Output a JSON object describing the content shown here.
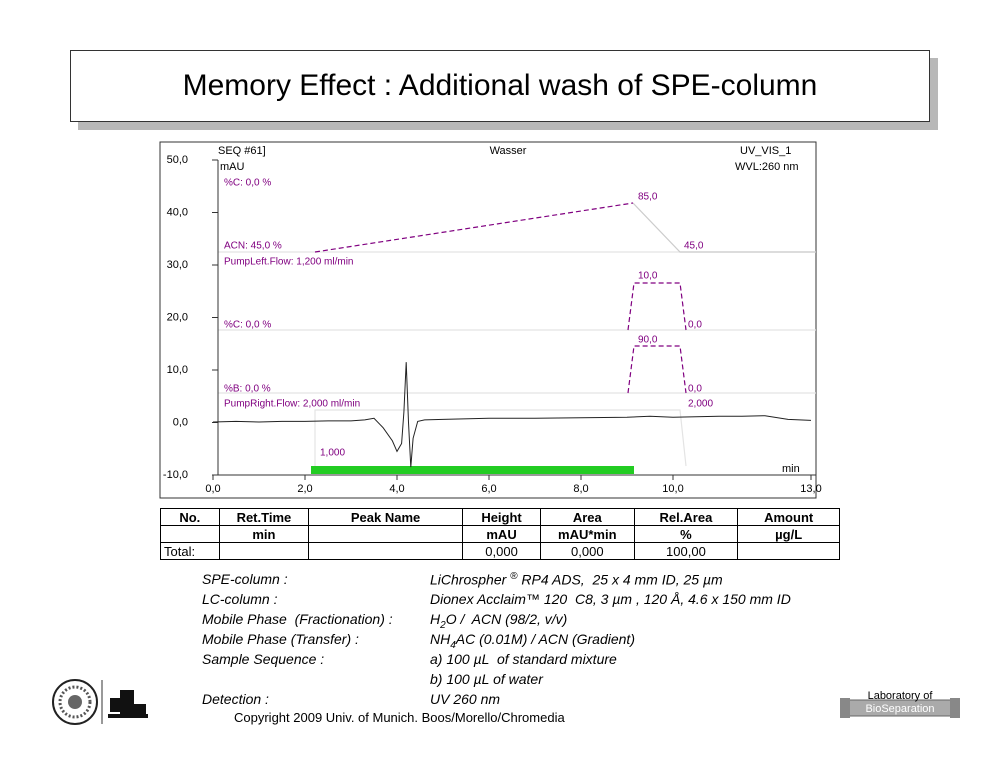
{
  "header": {
    "title": "Memory Effect :  Additional wash of SPE-column"
  },
  "chart_data": {
    "type": "line",
    "header_texts": [
      "SEQ #61]",
      "Wasser",
      "UV_VIS_1",
      "mAU",
      "WVL:260 nm"
    ],
    "x_label": "min",
    "x": [
      0,
      0.5,
      1,
      1.5,
      2,
      2.5,
      3,
      3.3,
      3.5,
      3.7,
      3.9,
      4.0,
      4.1,
      4.15,
      4.2,
      4.25,
      4.3,
      4.35,
      4.45,
      4.6,
      5,
      6,
      7,
      8,
      9,
      9.5,
      10,
      10.5,
      11,
      11.5,
      12,
      12.5,
      13
    ],
    "series": [
      {
        "color": "#222222",
        "values": [
          0.1,
          0.2,
          0.1,
          0.2,
          0.2,
          0.3,
          0.3,
          0.5,
          0.8,
          -1,
          -3.5,
          -5.5,
          -4,
          2,
          11.5,
          0,
          -8.5,
          -3,
          0.2,
          0.5,
          0.6,
          0.8,
          0.8,
          0.9,
          1,
          1.2,
          1,
          1.1,
          1.2,
          1.2,
          1.3,
          0.6,
          0.4
        ]
      }
    ],
    "xlim": [
      0,
      13
    ],
    "ylim": [
      -10,
      50
    ],
    "xticks": [
      {
        "value": 0,
        "label": "0,0"
      },
      {
        "value": 2,
        "label": "2,0"
      },
      {
        "value": 4,
        "label": "4,0"
      },
      {
        "value": 6,
        "label": "6,0"
      },
      {
        "value": 8,
        "label": "8,0"
      },
      {
        "value": 10,
        "label": "10,0"
      },
      {
        "value": 13,
        "label": "13,0"
      }
    ],
    "yticks": [
      {
        "value": -10,
        "label": "-10,0"
      },
      {
        "value": 0,
        "label": "0,0"
      },
      {
        "value": 10,
        "label": "10,0"
      },
      {
        "value": 20,
        "label": "20,0"
      },
      {
        "value": 30,
        "label": "30,0"
      },
      {
        "value": 40,
        "label": "40,0"
      },
      {
        "value": 50,
        "label": "50,0"
      }
    ],
    "annotations": [
      "%C: 0,0 %",
      "85,0",
      "ACN: 45,0 %",
      "45,0",
      "PumpLeft.Flow: 1,200 ml/min",
      "10,0",
      "%C: 0,0 %",
      "0,0",
      "90,0",
      "%B: 0,0 %",
      "0,0",
      "PumpRight.Flow: 2,000 ml/min",
      "2,000",
      "1,000"
    ]
  },
  "table": {
    "rows": [
      [
        "No.",
        "Ret.Time",
        "Peak Name",
        "Height",
        "Area",
        "Rel.Area",
        "Amount"
      ],
      [
        null,
        "min",
        null,
        "mAU",
        "mAU*min",
        "%",
        "µg/L"
      ],
      [
        "Total:",
        null,
        null,
        "0,000",
        "0,000",
        "100,00",
        null
      ]
    ]
  },
  "info": [
    {
      "label": "SPE-column :",
      "value": [
        "LiChrospher ",
        "®",
        " RP4 ADS,  25 x 4 mm ID, 25 µm"
      ]
    },
    {
      "label": "LC-column :",
      "value": [
        "Dionex Acclaim™ 120  C8, 3 µm , 120 Å, 4.6 x 150 mm ID"
      ]
    },
    {
      "label": "Mobile Phase  (Fractionation) :",
      "value": [
        "H",
        "2",
        "O /  ACN (98/2, v/v)"
      ]
    },
    {
      "label": "Mobile Phase (Transfer) :",
      "value": [
        "NH",
        "4",
        "AC (0.01M) / ACN (Gradient)"
      ]
    },
    {
      "label": "Sample Sequence :",
      "value": [
        "a) 100 µL  of standard mixture"
      ]
    },
    {
      "label": null,
      "value": [
        "b) 100 µL of water"
      ]
    },
    {
      "label": "Detection :",
      "value": [
        "UV 260 nm"
      ]
    }
  ],
  "footer": {
    "copyright": "Copyright 2009 Univ. of Munich. Boos/Morello/Chromedia",
    "logo_top": "Laboratory of",
    "logo_bottom": "BioSeparation"
  }
}
